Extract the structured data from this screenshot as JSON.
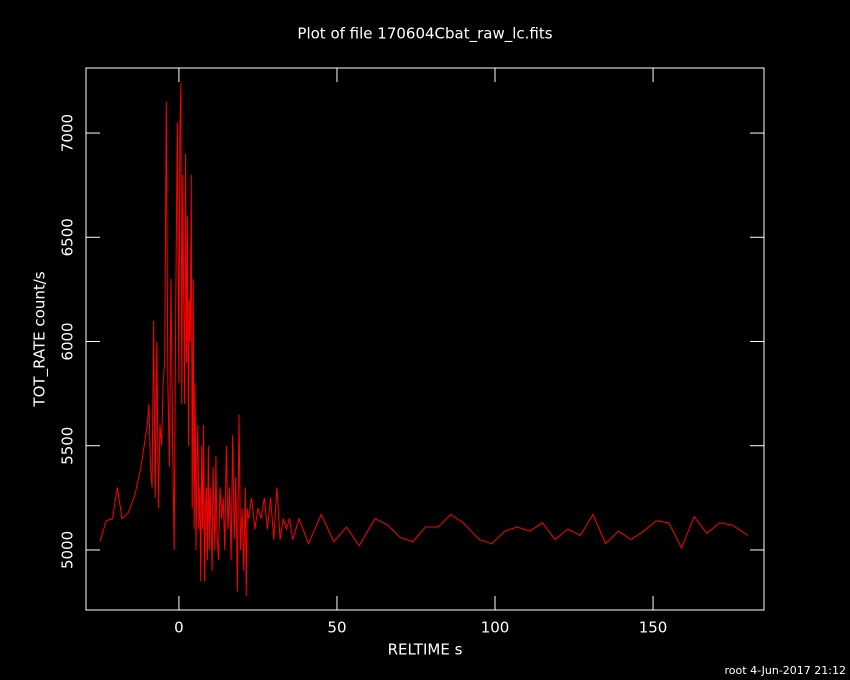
{
  "chart_data": {
    "type": "line",
    "title": "Plot of file 170604Cbat_raw_lc.fits",
    "x_label": "RELTIME  s",
    "y_label": "TOT_RATE  count/s",
    "footer": "root  4-Jun-2017 21:12",
    "xlim": [
      -29.4,
      185.1
    ],
    "ylim": [
      4712,
      7312
    ],
    "xticks": [
      0,
      50,
      100,
      150
    ],
    "yticks": [
      5000,
      5500,
      6000,
      6500,
      7000
    ],
    "series": [
      {
        "color": "#ff0000",
        "x": [
          -25,
          -23,
          -21,
          -19.5,
          -18,
          -16,
          -14,
          -12,
          -10,
          -9.5,
          -9,
          -8.5,
          -8,
          -7.5,
          -7,
          -6.5,
          -6,
          -5.5,
          -5,
          -4.5,
          -4,
          -3.5,
          -3,
          -2.5,
          -2,
          -1.5,
          -1,
          -0.5,
          0,
          0.3,
          0.6,
          0.9,
          1.2,
          1.5,
          1.8,
          2.1,
          2.4,
          2.7,
          3,
          3.3,
          3.6,
          3.9,
          4.2,
          4.5,
          4.8,
          5.1,
          5.4,
          5.7,
          6,
          6.3,
          6.6,
          6.9,
          7.2,
          7.5,
          7.8,
          8.1,
          8.4,
          8.7,
          9,
          9.3,
          9.6,
          9.9,
          10.2,
          10.5,
          10.8,
          11.1,
          11.4,
          11.7,
          12,
          12.5,
          13,
          13.5,
          14,
          14.5,
          15,
          15.5,
          16,
          16.5,
          17,
          17.5,
          18,
          18.5,
          19,
          19.5,
          20,
          20.5,
          21,
          21.3,
          21.6,
          22,
          23,
          24,
          25,
          26,
          27,
          28,
          29,
          30,
          31,
          32,
          33,
          34,
          35,
          36,
          38,
          41,
          45,
          49,
          53,
          57,
          62,
          66,
          70,
          74,
          78,
          82,
          86,
          90,
          95,
          99,
          103,
          107,
          111,
          115,
          119,
          123,
          127,
          131,
          135,
          139,
          143,
          147,
          151,
          155,
          159,
          163,
          167,
          171,
          175,
          180
        ],
        "values": [
          5040,
          5140,
          5150,
          5300,
          5150,
          5180,
          5260,
          5400,
          5600,
          5700,
          5400,
          5300,
          6100,
          5250,
          6000,
          5200,
          5600,
          5500,
          5800,
          5900,
          7150,
          5800,
          5400,
          6300,
          5500,
          5000,
          6200,
          7050,
          5800,
          7000,
          7240,
          5700,
          6800,
          6200,
          5700,
          6900,
          5900,
          6600,
          5500,
          6200,
          6000,
          6800,
          5200,
          6300,
          5100,
          5800,
          5000,
          5400,
          5600,
          5100,
          5300,
          4850,
          5500,
          5100,
          5600,
          4850,
          5200,
          5300,
          4950,
          5500,
          5000,
          5300,
          5100,
          4900,
          5400,
          5200,
          5000,
          5450,
          5100,
          4950,
          5300,
          5150,
          5250,
          5000,
          5500,
          5100,
          5300,
          4950,
          5550,
          5050,
          5350,
          4800,
          5650,
          5000,
          5200,
          4900,
          5300,
          4780,
          5200,
          5150,
          5250,
          5100,
          5200,
          5150,
          5250,
          5100,
          5250,
          5050,
          5300,
          5050,
          5150,
          5100,
          5150,
          5050,
          5150,
          5030,
          5170,
          5040,
          5110,
          5020,
          5150,
          5120,
          5060,
          5040,
          5110,
          5110,
          5170,
          5130,
          5050,
          5030,
          5090,
          5110,
          5090,
          5130,
          5050,
          5100,
          5070,
          5170,
          5030,
          5090,
          5050,
          5090,
          5140,
          5130,
          5010,
          5160,
          5080,
          5130,
          5120,
          5070
        ]
      }
    ]
  }
}
